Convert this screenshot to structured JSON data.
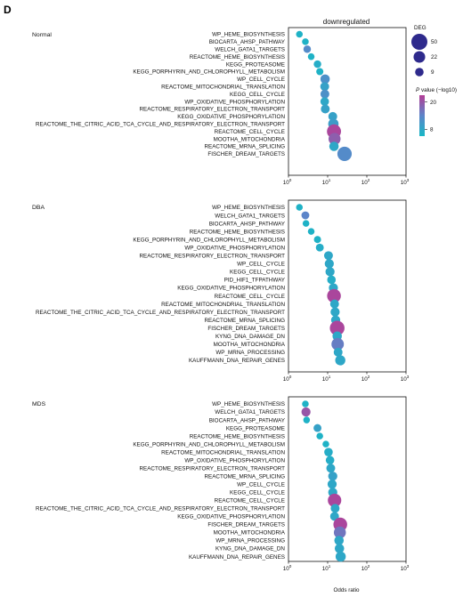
{
  "panel_letter": "D",
  "chart_data": {
    "type": "scatter",
    "title": "downregulated",
    "xlabel": "Odds ratio",
    "x_scale": "log",
    "xlim": [
      1,
      1000
    ],
    "x_ticks": [
      {
        "value": 1,
        "base": "10",
        "exp": "0"
      },
      {
        "value": 10,
        "base": "10",
        "exp": "1"
      },
      {
        "value": 100,
        "base": "10",
        "exp": "2"
      },
      {
        "value": 1000,
        "base": "10",
        "exp": "3"
      }
    ],
    "legend_size": {
      "title": "DEG",
      "values": [
        50,
        22,
        9
      ]
    },
    "legend_color": {
      "title_italic": "P",
      "title_rest": " value (−log10)",
      "ticks": [
        20,
        8
      ],
      "range": [
        5,
        23
      ]
    },
    "colors": {
      "low": "#17b8c6",
      "mid": "#5c85c9",
      "high": "#b43e96"
    },
    "panels": [
      {
        "name": "Normal",
        "points": [
          {
            "term": "WP_HEME_BIOSYNTHESIS",
            "x": 1.9,
            "deg": 4,
            "p": 6
          },
          {
            "term": "BIOCARTA_AHSP_PATHWAY",
            "x": 2.7,
            "deg": 4,
            "p": 6
          },
          {
            "term": "WELCH_GATA1_TARGETS",
            "x": 3.0,
            "deg": 6,
            "p": 13
          },
          {
            "term": "REACTOME_HEME_BIOSYNTHESIS",
            "x": 3.8,
            "deg": 4,
            "p": 6
          },
          {
            "term": "KEGG_PROTEASOME",
            "x": 5.5,
            "deg": 6,
            "p": 7
          },
          {
            "term": "KEGG_PORPHYRIN_AND_CHLOROPHYLL_METABOLISM",
            "x": 6.3,
            "deg": 5,
            "p": 6
          },
          {
            "term": "WP_CELL_CYCLE",
            "x": 8.6,
            "deg": 12,
            "p": 12
          },
          {
            "term": "REACTOME_MITOCHONDRIAL_TRANSLATION",
            "x": 8.4,
            "deg": 10,
            "p": 9
          },
          {
            "term": "KEGG_CELL_CYCLE",
            "x": 8.5,
            "deg": 10,
            "p": 12
          },
          {
            "term": "WP_OXIDATIVE_PHOSPHORYLATION",
            "x": 8.4,
            "deg": 9,
            "p": 8
          },
          {
            "term": "REACTOME_RESPIRATORY_ELECTRON_TRANSPORT",
            "x": 8.7,
            "deg": 10,
            "p": 9
          },
          {
            "term": "KEGG_OXIDATIVE_PHOSPHORYLATION",
            "x": 13.5,
            "deg": 10,
            "p": 9
          },
          {
            "term": "REACTOME_THE_CITRIC_ACID_TCA_CYCLE_AND_RESPIRATORY_ELECTRON_TRANSPORT",
            "x": 14.0,
            "deg": 16,
            "p": 10
          },
          {
            "term": "REACTOME_CELL_CYCLE",
            "x": 14.5,
            "deg": 36,
            "p": 22
          },
          {
            "term": "MOOTHA_MITOCHONDRIA",
            "x": 15.0,
            "deg": 24,
            "p": 19
          },
          {
            "term": "REACTOME_MRNA_SPLICING",
            "x": 14.5,
            "deg": 12,
            "p": 8
          },
          {
            "term": "FISCHER_DREAM_TARGETS",
            "x": 27.0,
            "deg": 38,
            "p": 13
          }
        ]
      },
      {
        "name": "DBA",
        "points": [
          {
            "term": "WP_HEME_BIOSYNTHESIS",
            "x": 1.9,
            "deg": 4,
            "p": 6
          },
          {
            "term": "WELCH_GATA1_TARGETS",
            "x": 2.7,
            "deg": 7,
            "p": 14
          },
          {
            "term": "BIOCARTA_AHSP_PATHWAY",
            "x": 2.8,
            "deg": 4,
            "p": 6
          },
          {
            "term": "REACTOME_HEME_BIOSYNTHESIS",
            "x": 3.8,
            "deg": 4,
            "p": 6
          },
          {
            "term": "KEGG_PORPHYRIN_AND_CHLOROPHYLL_METABOLISM",
            "x": 5.5,
            "deg": 5,
            "p": 6
          },
          {
            "term": "WP_OXIDATIVE_PHOSPHORYLATION",
            "x": 6.3,
            "deg": 7,
            "p": 7
          },
          {
            "term": "REACTOME_RESPIRATORY_ELECTRON_TRANSPORT",
            "x": 10.5,
            "deg": 10,
            "p": 8
          },
          {
            "term": "WP_CELL_CYCLE",
            "x": 11.0,
            "deg": 11,
            "p": 8
          },
          {
            "term": "KEGG_CELL_CYCLE",
            "x": 11.5,
            "deg": 11,
            "p": 8
          },
          {
            "term": "PID_HIF1_TFPATHWAY",
            "x": 12.5,
            "deg": 9,
            "p": 7
          },
          {
            "term": "KEGG_OXIDATIVE_PHOSPHORYLATION",
            "x": 14.0,
            "deg": 11,
            "p": 8
          },
          {
            "term": "REACTOME_CELL_CYCLE",
            "x": 14.5,
            "deg": 34,
            "p": 22
          },
          {
            "term": "REACTOME_MITOCHONDRIAL_TRANSLATION",
            "x": 15.0,
            "deg": 10,
            "p": 8
          },
          {
            "term": "REACTOME_THE_CITRIC_ACID_TCA_CYCLE_AND_RESPIRATORY_ELECTRON_TRANSPORT",
            "x": 15.5,
            "deg": 11,
            "p": 8
          },
          {
            "term": "REACTOME_MRNA_SPLICING",
            "x": 16.0,
            "deg": 11,
            "p": 8
          },
          {
            "term": "FISCHER_DREAM_TARGETS",
            "x": 17.5,
            "deg": 40,
            "p": 22
          },
          {
            "term": "KYNG_DNA_DAMAGE_DN",
            "x": 17.5,
            "deg": 12,
            "p": 8
          },
          {
            "term": "MOOTHA_MITOCHONDRIA",
            "x": 18.0,
            "deg": 26,
            "p": 15
          },
          {
            "term": "WP_MRNA_PROCESSING",
            "x": 18.5,
            "deg": 10,
            "p": 8
          },
          {
            "term": "KAUFFMANN_DNA_REPAIR_GENES",
            "x": 21.0,
            "deg": 15,
            "p": 8
          }
        ]
      },
      {
        "name": "MDS",
        "points": [
          {
            "term": "WP_HEME_BIOSYNTHESIS",
            "x": 2.7,
            "deg": 4,
            "p": 6
          },
          {
            "term": "WELCH_GATA1_TARGETS",
            "x": 2.8,
            "deg": 11,
            "p": 20
          },
          {
            "term": "BIOCARTA_AHSP_PATHWAY",
            "x": 2.9,
            "deg": 4,
            "p": 6
          },
          {
            "term": "KEGG_PROTEASOME",
            "x": 5.5,
            "deg": 7,
            "p": 9
          },
          {
            "term": "REACTOME_HEME_BIOSYNTHESIS",
            "x": 6.3,
            "deg": 4,
            "p": 6
          },
          {
            "term": "KEGG_PORPHYRIN_AND_CHLOROPHYLL_METABOLISM",
            "x": 9.0,
            "deg": 4,
            "p": 6
          },
          {
            "term": "REACTOME_MITOCHONDRIAL_TRANSLATION",
            "x": 10.5,
            "deg": 9,
            "p": 7
          },
          {
            "term": "WP_OXIDATIVE_PHOSPHORYLATION",
            "x": 11.5,
            "deg": 9,
            "p": 7
          },
          {
            "term": "REACTOME_RESPIRATORY_ELECTRON_TRANSPORT",
            "x": 12.0,
            "deg": 10,
            "p": 8
          },
          {
            "term": "REACTOME_MRNA_SPLICING",
            "x": 13.5,
            "deg": 11,
            "p": 9
          },
          {
            "term": "WP_CELL_CYCLE",
            "x": 13.0,
            "deg": 11,
            "p": 8
          },
          {
            "term": "KEGG_CELL_CYCLE",
            "x": 13.5,
            "deg": 11,
            "p": 8
          },
          {
            "term": "REACTOME_CELL_CYCLE",
            "x": 15.0,
            "deg": 32,
            "p": 22
          },
          {
            "term": "REACTOME_THE_CITRIC_ACID_TCA_CYCLE_AND_RESPIRATORY_ELECTRON_TRANSPORT",
            "x": 15.5,
            "deg": 10,
            "p": 8
          },
          {
            "term": "KEGG_OXIDATIVE_PHOSPHORYLATION",
            "x": 15.0,
            "deg": 10,
            "p": 8
          },
          {
            "term": "FISCHER_DREAM_TARGETS",
            "x": 21.0,
            "deg": 34,
            "p": 22
          },
          {
            "term": "MOOTHA_MITOCHONDRIA",
            "x": 20.5,
            "deg": 24,
            "p": 16
          },
          {
            "term": "WP_MRNA_PROCESSING",
            "x": 19.5,
            "deg": 12,
            "p": 8
          },
          {
            "term": "KYNG_DNA_DAMAGE_DN",
            "x": 20.0,
            "deg": 12,
            "p": 8
          },
          {
            "term": "KAUFFMANN_DNA_REPAIR_GENES",
            "x": 21.5,
            "deg": 15,
            "p": 8
          }
        ]
      }
    ]
  }
}
